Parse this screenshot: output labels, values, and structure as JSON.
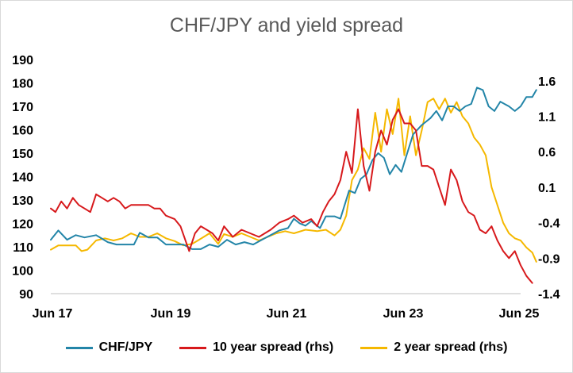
{
  "chart_data": {
    "type": "line",
    "title": "CHF/JPY and yield spread",
    "x_ticks": [
      "Jun 17",
      "Jun 19",
      "Jun 21",
      "Jun 23",
      "Jun 25"
    ],
    "x_range": [
      2017.42,
      2025.5
    ],
    "y_left": {
      "range": [
        90,
        190
      ],
      "ticks": [
        90,
        100,
        110,
        120,
        130,
        140,
        150,
        160,
        170,
        180,
        190
      ]
    },
    "y_right": {
      "range": [
        -1.4,
        1.9
      ],
      "ticks": [
        -1.4,
        -0.9,
        -0.4,
        0.1,
        0.6,
        1.1,
        1.6
      ]
    },
    "legend_position": "bottom",
    "grid": false,
    "series": [
      {
        "name": "CHF/JPY",
        "axis": "left",
        "color": "#2385a8",
        "points": [
          [
            2017.42,
            113
          ],
          [
            2017.55,
            117
          ],
          [
            2017.7,
            113
          ],
          [
            2017.85,
            115
          ],
          [
            2018.0,
            114
          ],
          [
            2018.2,
            115
          ],
          [
            2018.4,
            112
          ],
          [
            2018.55,
            111
          ],
          [
            2018.7,
            111
          ],
          [
            2018.85,
            111
          ],
          [
            2018.95,
            116
          ],
          [
            2019.1,
            114
          ],
          [
            2019.25,
            114
          ],
          [
            2019.4,
            111
          ],
          [
            2019.55,
            111
          ],
          [
            2019.7,
            111
          ],
          [
            2019.85,
            109
          ],
          [
            2020.0,
            109
          ],
          [
            2020.15,
            111
          ],
          [
            2020.3,
            110
          ],
          [
            2020.45,
            113
          ],
          [
            2020.6,
            111
          ],
          [
            2020.75,
            112
          ],
          [
            2020.9,
            111
          ],
          [
            2021.05,
            113
          ],
          [
            2021.2,
            115
          ],
          [
            2021.35,
            117
          ],
          [
            2021.5,
            118
          ],
          [
            2021.6,
            122
          ],
          [
            2021.7,
            120
          ],
          [
            2021.8,
            119
          ],
          [
            2021.9,
            121
          ],
          [
            2022.05,
            118
          ],
          [
            2022.15,
            123
          ],
          [
            2022.3,
            123
          ],
          [
            2022.4,
            122
          ],
          [
            2022.55,
            134
          ],
          [
            2022.65,
            133
          ],
          [
            2022.75,
            139
          ],
          [
            2022.85,
            141
          ],
          [
            2022.95,
            147
          ],
          [
            2023.05,
            150
          ],
          [
            2023.15,
            148
          ],
          [
            2023.25,
            141
          ],
          [
            2023.35,
            145
          ],
          [
            2023.45,
            142
          ],
          [
            2023.55,
            150
          ],
          [
            2023.65,
            158
          ],
          [
            2023.8,
            162
          ],
          [
            2023.95,
            165
          ],
          [
            2024.05,
            168
          ],
          [
            2024.15,
            164
          ],
          [
            2024.25,
            170
          ],
          [
            2024.35,
            170
          ],
          [
            2024.45,
            168
          ],
          [
            2024.55,
            170
          ],
          [
            2024.65,
            171
          ],
          [
            2024.75,
            178
          ],
          [
            2024.85,
            177
          ],
          [
            2024.95,
            170
          ],
          [
            2025.05,
            168
          ],
          [
            2025.15,
            172
          ],
          [
            2025.3,
            170
          ],
          [
            2025.4,
            168
          ],
          [
            2025.5,
            170
          ],
          [
            2025.6,
            174
          ],
          [
            2025.7,
            174
          ],
          [
            2025.77,
            177
          ]
        ]
      },
      {
        "name": "10 year spread (rhs)",
        "axis": "right",
        "color": "#d7191c",
        "points": [
          [
            2017.42,
            -0.2
          ],
          [
            2017.5,
            -0.25
          ],
          [
            2017.6,
            -0.1
          ],
          [
            2017.7,
            -0.2
          ],
          [
            2017.8,
            -0.05
          ],
          [
            2017.9,
            -0.15
          ],
          [
            2018.0,
            -0.2
          ],
          [
            2018.1,
            -0.25
          ],
          [
            2018.2,
            0.0
          ],
          [
            2018.3,
            -0.05
          ],
          [
            2018.4,
            -0.1
          ],
          [
            2018.5,
            -0.05
          ],
          [
            2018.6,
            -0.1
          ],
          [
            2018.7,
            -0.2
          ],
          [
            2018.8,
            -0.15
          ],
          [
            2018.95,
            -0.15
          ],
          [
            2019.1,
            -0.15
          ],
          [
            2019.2,
            -0.2
          ],
          [
            2019.3,
            -0.2
          ],
          [
            2019.4,
            -0.3
          ],
          [
            2019.55,
            -0.35
          ],
          [
            2019.65,
            -0.45
          ],
          [
            2019.8,
            -0.8
          ],
          [
            2019.9,
            -0.55
          ],
          [
            2020.0,
            -0.45
          ],
          [
            2020.1,
            -0.5
          ],
          [
            2020.2,
            -0.55
          ],
          [
            2020.3,
            -0.65
          ],
          [
            2020.4,
            -0.45
          ],
          [
            2020.55,
            -0.6
          ],
          [
            2020.7,
            -0.5
          ],
          [
            2020.85,
            -0.55
          ],
          [
            2021.0,
            -0.6
          ],
          [
            2021.2,
            -0.5
          ],
          [
            2021.35,
            -0.4
          ],
          [
            2021.5,
            -0.35
          ],
          [
            2021.6,
            -0.3
          ],
          [
            2021.75,
            -0.4
          ],
          [
            2021.9,
            -0.35
          ],
          [
            2022.0,
            -0.45
          ],
          [
            2022.1,
            -0.25
          ],
          [
            2022.2,
            -0.1
          ],
          [
            2022.3,
            0.0
          ],
          [
            2022.4,
            0.2
          ],
          [
            2022.5,
            0.6
          ],
          [
            2022.6,
            0.3
          ],
          [
            2022.7,
            1.2
          ],
          [
            2022.8,
            0.4
          ],
          [
            2022.9,
            0.05
          ],
          [
            2023.0,
            0.6
          ],
          [
            2023.1,
            0.9
          ],
          [
            2023.2,
            0.7
          ],
          [
            2023.3,
            1.05
          ],
          [
            2023.4,
            1.2
          ],
          [
            2023.5,
            1.0
          ],
          [
            2023.6,
            1.0
          ],
          [
            2023.7,
            0.9
          ],
          [
            2023.8,
            0.4
          ],
          [
            2023.9,
            0.4
          ],
          [
            2024.0,
            0.35
          ],
          [
            2024.1,
            0.1
          ],
          [
            2024.2,
            -0.15
          ],
          [
            2024.3,
            0.35
          ],
          [
            2024.4,
            0.2
          ],
          [
            2024.5,
            -0.1
          ],
          [
            2024.6,
            -0.25
          ],
          [
            2024.7,
            -0.3
          ],
          [
            2024.8,
            -0.5
          ],
          [
            2024.9,
            -0.55
          ],
          [
            2025.0,
            -0.45
          ],
          [
            2025.1,
            -0.65
          ],
          [
            2025.2,
            -0.8
          ],
          [
            2025.3,
            -0.9
          ],
          [
            2025.4,
            -0.8
          ],
          [
            2025.5,
            -1.0
          ],
          [
            2025.6,
            -1.15
          ],
          [
            2025.7,
            -1.25
          ]
        ]
      },
      {
        "name": "2 year spread (rhs)",
        "axis": "right",
        "color": "#f5b800",
        "points": [
          [
            2017.42,
            -0.78
          ],
          [
            2017.55,
            -0.72
          ],
          [
            2017.7,
            -0.72
          ],
          [
            2017.85,
            -0.72
          ],
          [
            2017.95,
            -0.8
          ],
          [
            2018.05,
            -0.78
          ],
          [
            2018.2,
            -0.65
          ],
          [
            2018.35,
            -0.62
          ],
          [
            2018.5,
            -0.65
          ],
          [
            2018.65,
            -0.62
          ],
          [
            2018.8,
            -0.55
          ],
          [
            2018.95,
            -0.6
          ],
          [
            2019.1,
            -0.6
          ],
          [
            2019.25,
            -0.55
          ],
          [
            2019.4,
            -0.62
          ],
          [
            2019.55,
            -0.66
          ],
          [
            2019.7,
            -0.72
          ],
          [
            2019.85,
            -0.7
          ],
          [
            2019.95,
            -0.65
          ],
          [
            2020.05,
            -0.6
          ],
          [
            2020.15,
            -0.55
          ],
          [
            2020.3,
            -0.7
          ],
          [
            2020.4,
            -0.56
          ],
          [
            2020.55,
            -0.6
          ],
          [
            2020.7,
            -0.55
          ],
          [
            2020.85,
            -0.6
          ],
          [
            2021.0,
            -0.65
          ],
          [
            2021.15,
            -0.6
          ],
          [
            2021.3,
            -0.55
          ],
          [
            2021.45,
            -0.52
          ],
          [
            2021.6,
            -0.55
          ],
          [
            2021.8,
            -0.5
          ],
          [
            2022.0,
            -0.52
          ],
          [
            2022.15,
            -0.5
          ],
          [
            2022.3,
            -0.58
          ],
          [
            2022.4,
            -0.5
          ],
          [
            2022.5,
            -0.3
          ],
          [
            2022.6,
            0.2
          ],
          [
            2022.7,
            0.35
          ],
          [
            2022.8,
            0.65
          ],
          [
            2022.9,
            0.5
          ],
          [
            2023.0,
            1.15
          ],
          [
            2023.1,
            0.6
          ],
          [
            2023.2,
            1.2
          ],
          [
            2023.3,
            0.85
          ],
          [
            2023.4,
            1.35
          ],
          [
            2023.5,
            0.55
          ],
          [
            2023.6,
            1.1
          ],
          [
            2023.7,
            0.55
          ],
          [
            2023.8,
            0.9
          ],
          [
            2023.9,
            1.3
          ],
          [
            2024.0,
            1.35
          ],
          [
            2024.1,
            1.2
          ],
          [
            2024.2,
            1.35
          ],
          [
            2024.3,
            1.15
          ],
          [
            2024.4,
            1.3
          ],
          [
            2024.5,
            1.1
          ],
          [
            2024.6,
            1.0
          ],
          [
            2024.7,
            0.8
          ],
          [
            2024.8,
            0.7
          ],
          [
            2024.9,
            0.55
          ],
          [
            2025.0,
            0.1
          ],
          [
            2025.1,
            -0.15
          ],
          [
            2025.2,
            -0.4
          ],
          [
            2025.3,
            -0.55
          ],
          [
            2025.4,
            -0.62
          ],
          [
            2025.5,
            -0.65
          ],
          [
            2025.6,
            -0.75
          ],
          [
            2025.7,
            -0.82
          ],
          [
            2025.77,
            -0.95
          ]
        ]
      }
    ]
  }
}
